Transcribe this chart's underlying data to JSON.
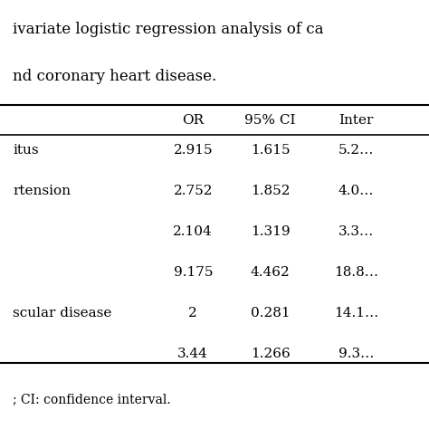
{
  "title_line1": "ivariate logistic regression analysis of ca",
  "title_line2": "nd coronary heart disease.",
  "col_headers": [
    "OR",
    "95% CI",
    "Inter"
  ],
  "row_labels": [
    "itus",
    "rtension",
    "",
    "",
    "scular disease",
    ""
  ],
  "or_values": [
    "2.915",
    "2.752",
    "2.104",
    "9.175",
    "2",
    "3.44"
  ],
  "ci_lower": [
    "1.615",
    "1.852",
    "1.319",
    "4.462",
    "0.281",
    "1.266"
  ],
  "ci_upper": [
    "5.2…",
    "4.0…",
    "3.3…",
    "18.8…",
    "14.1…",
    "9.3…"
  ],
  "footnote": "; CI: confidence interval.",
  "bg_color": "#ffffff",
  "text_color": "#000000",
  "line_color": "#000000",
  "font_size": 11,
  "header_font_size": 11,
  "title_font_size": 12
}
